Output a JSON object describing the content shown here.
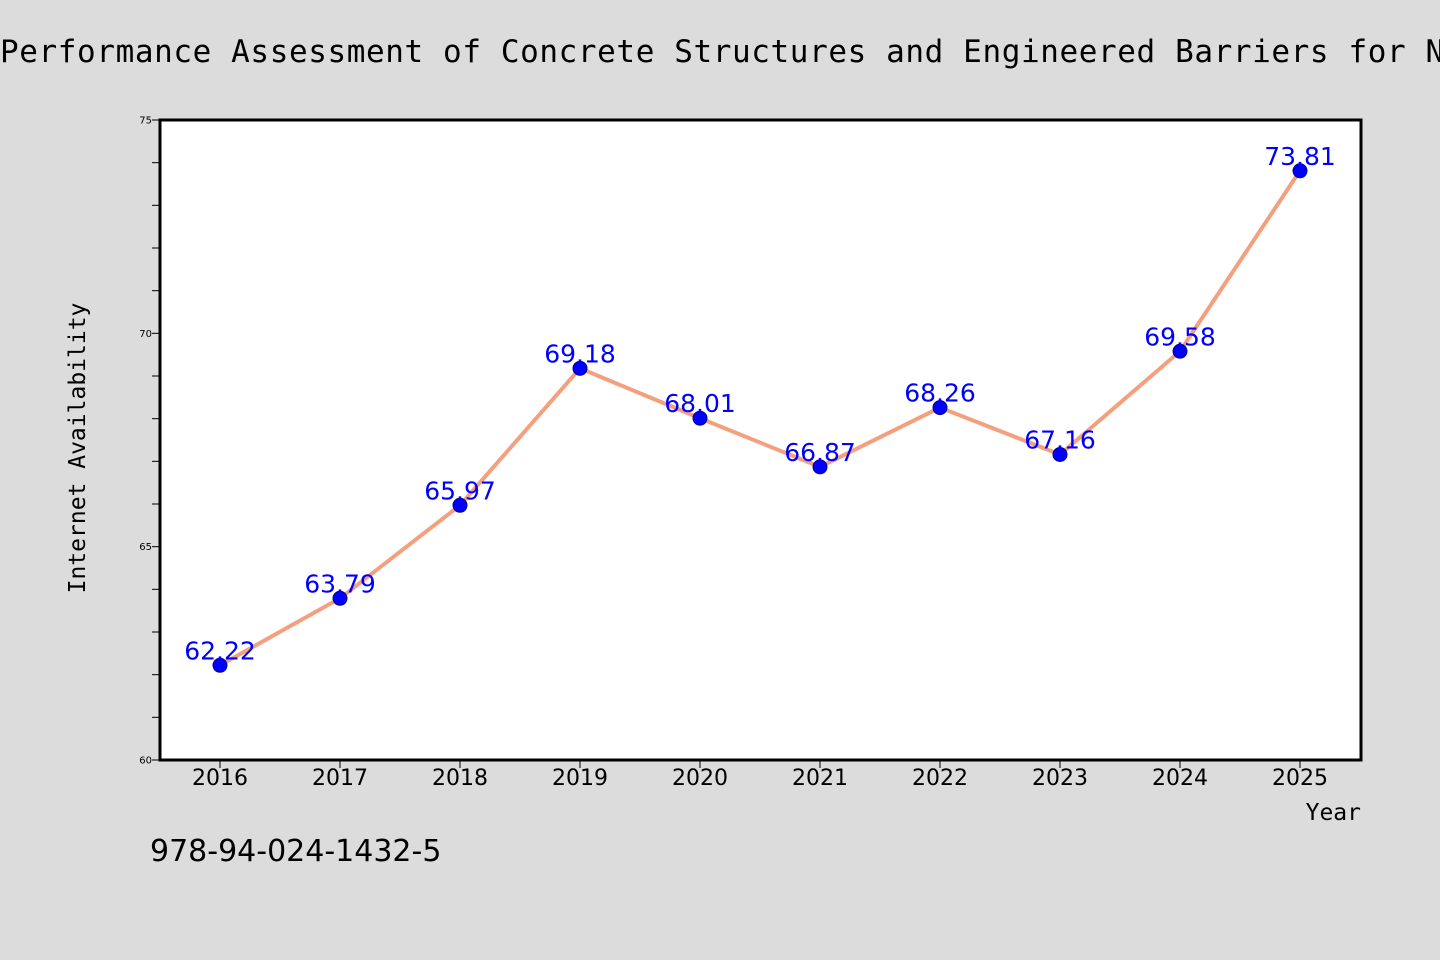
{
  "chart_data": {
    "type": "line",
    "title": "Performance Assessment of Concrete Structures and Engineered Barriers for Nuclea",
    "xlabel": "Year",
    "ylabel": "Internet Availability",
    "x": [
      "2016",
      "2017",
      "2018",
      "2019",
      "2020",
      "2021",
      "2022",
      "2023",
      "2024",
      "2025"
    ],
    "series": [
      {
        "values": [
          62.22,
          63.79,
          65.97,
          69.18,
          68.01,
          66.87,
          68.26,
          67.16,
          69.58,
          73.81
        ],
        "labels": [
          "62.22",
          "63.79",
          "65.97",
          "69.18",
          "68.01",
          "66.87",
          "68.26",
          "67.16",
          "69.58",
          "73.81"
        ]
      }
    ],
    "ylim": [
      60,
      75
    ],
    "yticks": [
      "60",
      "65",
      "70",
      "75"
    ],
    "ytick_minor_step": 1,
    "grid": false,
    "legend": "none",
    "colors": {
      "line": "#f4a07f",
      "marker": "#0000ff",
      "marker_edge": "#00008b",
      "data_label": "#0000ff",
      "plot_bg": "#ffffff",
      "page_bg": "#dcdcdc"
    }
  },
  "footer": {
    "isbn": "978-94-024-1432-5"
  }
}
